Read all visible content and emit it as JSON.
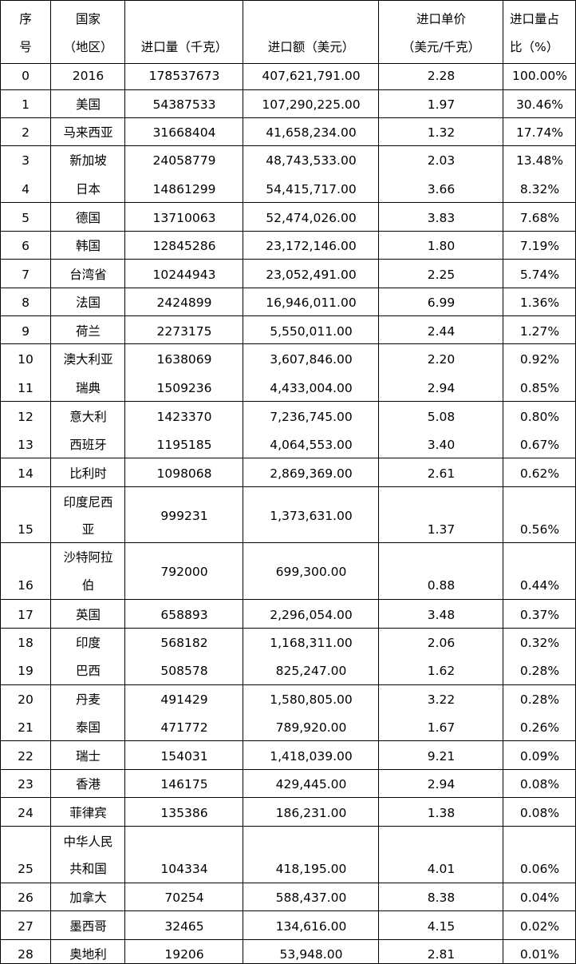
{
  "headers": {
    "seq": [
      "序",
      "号"
    ],
    "region": [
      "国家",
      "（地区）"
    ],
    "qty": "进口量（千克）",
    "amount": "进口额（美元）",
    "price": [
      "进口单价",
      "（美元/千克）"
    ],
    "share": [
      "进口量占",
      "比（%）"
    ]
  },
  "rows": [
    {
      "seq": "0",
      "region": [
        "2016"
      ],
      "qty": "178537673",
      "amount": "407,621,791.00",
      "price": "2.28",
      "share": "100.00%"
    },
    {
      "seq": "1",
      "region": [
        "美国"
      ],
      "qty": "54387533",
      "amount": "107,290,225.00",
      "price": "1.97",
      "share": "30.46%"
    },
    {
      "seq": "2",
      "region": [
        "马来西亚"
      ],
      "qty": "31668404",
      "amount": "41,658,234.00",
      "price": "1.32",
      "share": "17.74%"
    },
    {
      "seq": "3",
      "region": [
        "新加坡"
      ],
      "qty": "24058779",
      "amount": "48,743,533.00",
      "price": "2.03",
      "share": "13.48%"
    },
    {
      "seq": "4",
      "region": [
        "日本"
      ],
      "qty": "14861299",
      "amount": "54,415,717.00",
      "price": "3.66",
      "share": "8.32%"
    },
    {
      "seq": "5",
      "region": [
        "德国"
      ],
      "qty": "13710063",
      "amount": "52,474,026.00",
      "price": "3.83",
      "share": "7.68%"
    },
    {
      "seq": "6",
      "region": [
        "韩国"
      ],
      "qty": "12845286",
      "amount": "23,172,146.00",
      "price": "1.80",
      "share": "7.19%"
    },
    {
      "seq": "7",
      "region": [
        "台湾省"
      ],
      "qty": "10244943",
      "amount": "23,052,491.00",
      "price": "2.25",
      "share": "5.74%"
    },
    {
      "seq": "8",
      "region": [
        "法国"
      ],
      "qty": "2424899",
      "amount": "16,946,011.00",
      "price": "6.99",
      "share": "1.36%"
    },
    {
      "seq": "9",
      "region": [
        "荷兰"
      ],
      "qty": "2273175",
      "amount": "5,550,011.00",
      "price": "2.44",
      "share": "1.27%"
    },
    {
      "seq": "10",
      "region": [
        "澳大利亚"
      ],
      "qty": "1638069",
      "amount": "3,607,846.00",
      "price": "2.20",
      "share": "0.92%"
    },
    {
      "seq": "11",
      "region": [
        "瑞典"
      ],
      "qty": "1509236",
      "amount": "4,433,004.00",
      "price": "2.94",
      "share": "0.85%"
    },
    {
      "seq": "12",
      "region": [
        "意大利"
      ],
      "qty": "1423370",
      "amount": "7,236,745.00",
      "price": "5.08",
      "share": "0.80%"
    },
    {
      "seq": "13",
      "region": [
        "西班牙"
      ],
      "qty": "1195185",
      "amount": "4,064,553.00",
      "price": "3.40",
      "share": "0.67%"
    },
    {
      "seq": "14",
      "region": [
        "比利时"
      ],
      "qty": "1098068",
      "amount": "2,869,369.00",
      "price": "2.61",
      "share": "0.62%"
    },
    {
      "seq": "15",
      "region": [
        "印度尼西",
        "亚"
      ],
      "qty": "999231",
      "amount": "1,373,631.00",
      "price": "1.37",
      "share": "0.56%"
    },
    {
      "seq": "16",
      "region": [
        "沙特阿拉",
        "伯"
      ],
      "qty": "792000",
      "amount": "699,300.00",
      "price": "0.88",
      "share": "0.44%"
    },
    {
      "seq": "17",
      "region": [
        "英国"
      ],
      "qty": "658893",
      "amount": "2,296,054.00",
      "price": "3.48",
      "share": "0.37%"
    },
    {
      "seq": "18",
      "region": [
        "印度"
      ],
      "qty": "568182",
      "amount": "1,168,311.00",
      "price": "2.06",
      "share": "0.32%"
    },
    {
      "seq": "19",
      "region": [
        "巴西"
      ],
      "qty": "508578",
      "amount": "825,247.00",
      "price": "1.62",
      "share": "0.28%"
    },
    {
      "seq": "20",
      "region": [
        "丹麦"
      ],
      "qty": "491429",
      "amount": "1,580,805.00",
      "price": "3.22",
      "share": "0.28%"
    },
    {
      "seq": "21",
      "region": [
        "泰国"
      ],
      "qty": "471772",
      "amount": "789,920.00",
      "price": "1.67",
      "share": "0.26%"
    },
    {
      "seq": "22",
      "region": [
        "瑞士"
      ],
      "qty": "154031",
      "amount": "1,418,039.00",
      "price": "9.21",
      "share": "0.09%"
    },
    {
      "seq": "23",
      "region": [
        "香港"
      ],
      "qty": "146175",
      "amount": "429,445.00",
      "price": "2.94",
      "share": "0.08%"
    },
    {
      "seq": "24",
      "region": [
        "菲律宾"
      ],
      "qty": "135386",
      "amount": "186,231.00",
      "price": "1.38",
      "share": "0.08%"
    },
    {
      "seq": "25",
      "region": [
        "中华人民",
        "共和国"
      ],
      "qty": "104334",
      "amount": "418,195.00",
      "price": "4.01",
      "share": "0.06%"
    },
    {
      "seq": "26",
      "region": [
        "加拿大"
      ],
      "qty": "70254",
      "amount": "588,437.00",
      "price": "8.38",
      "share": "0.04%"
    },
    {
      "seq": "27",
      "region": [
        "墨西哥"
      ],
      "qty": "32465",
      "amount": "134,616.00",
      "price": "4.15",
      "share": "0.02%"
    },
    {
      "seq": "28",
      "region": [
        "奥地利"
      ],
      "qty": "19206",
      "amount": "53,948.00",
      "price": "2.81",
      "share": "0.01%"
    }
  ]
}
